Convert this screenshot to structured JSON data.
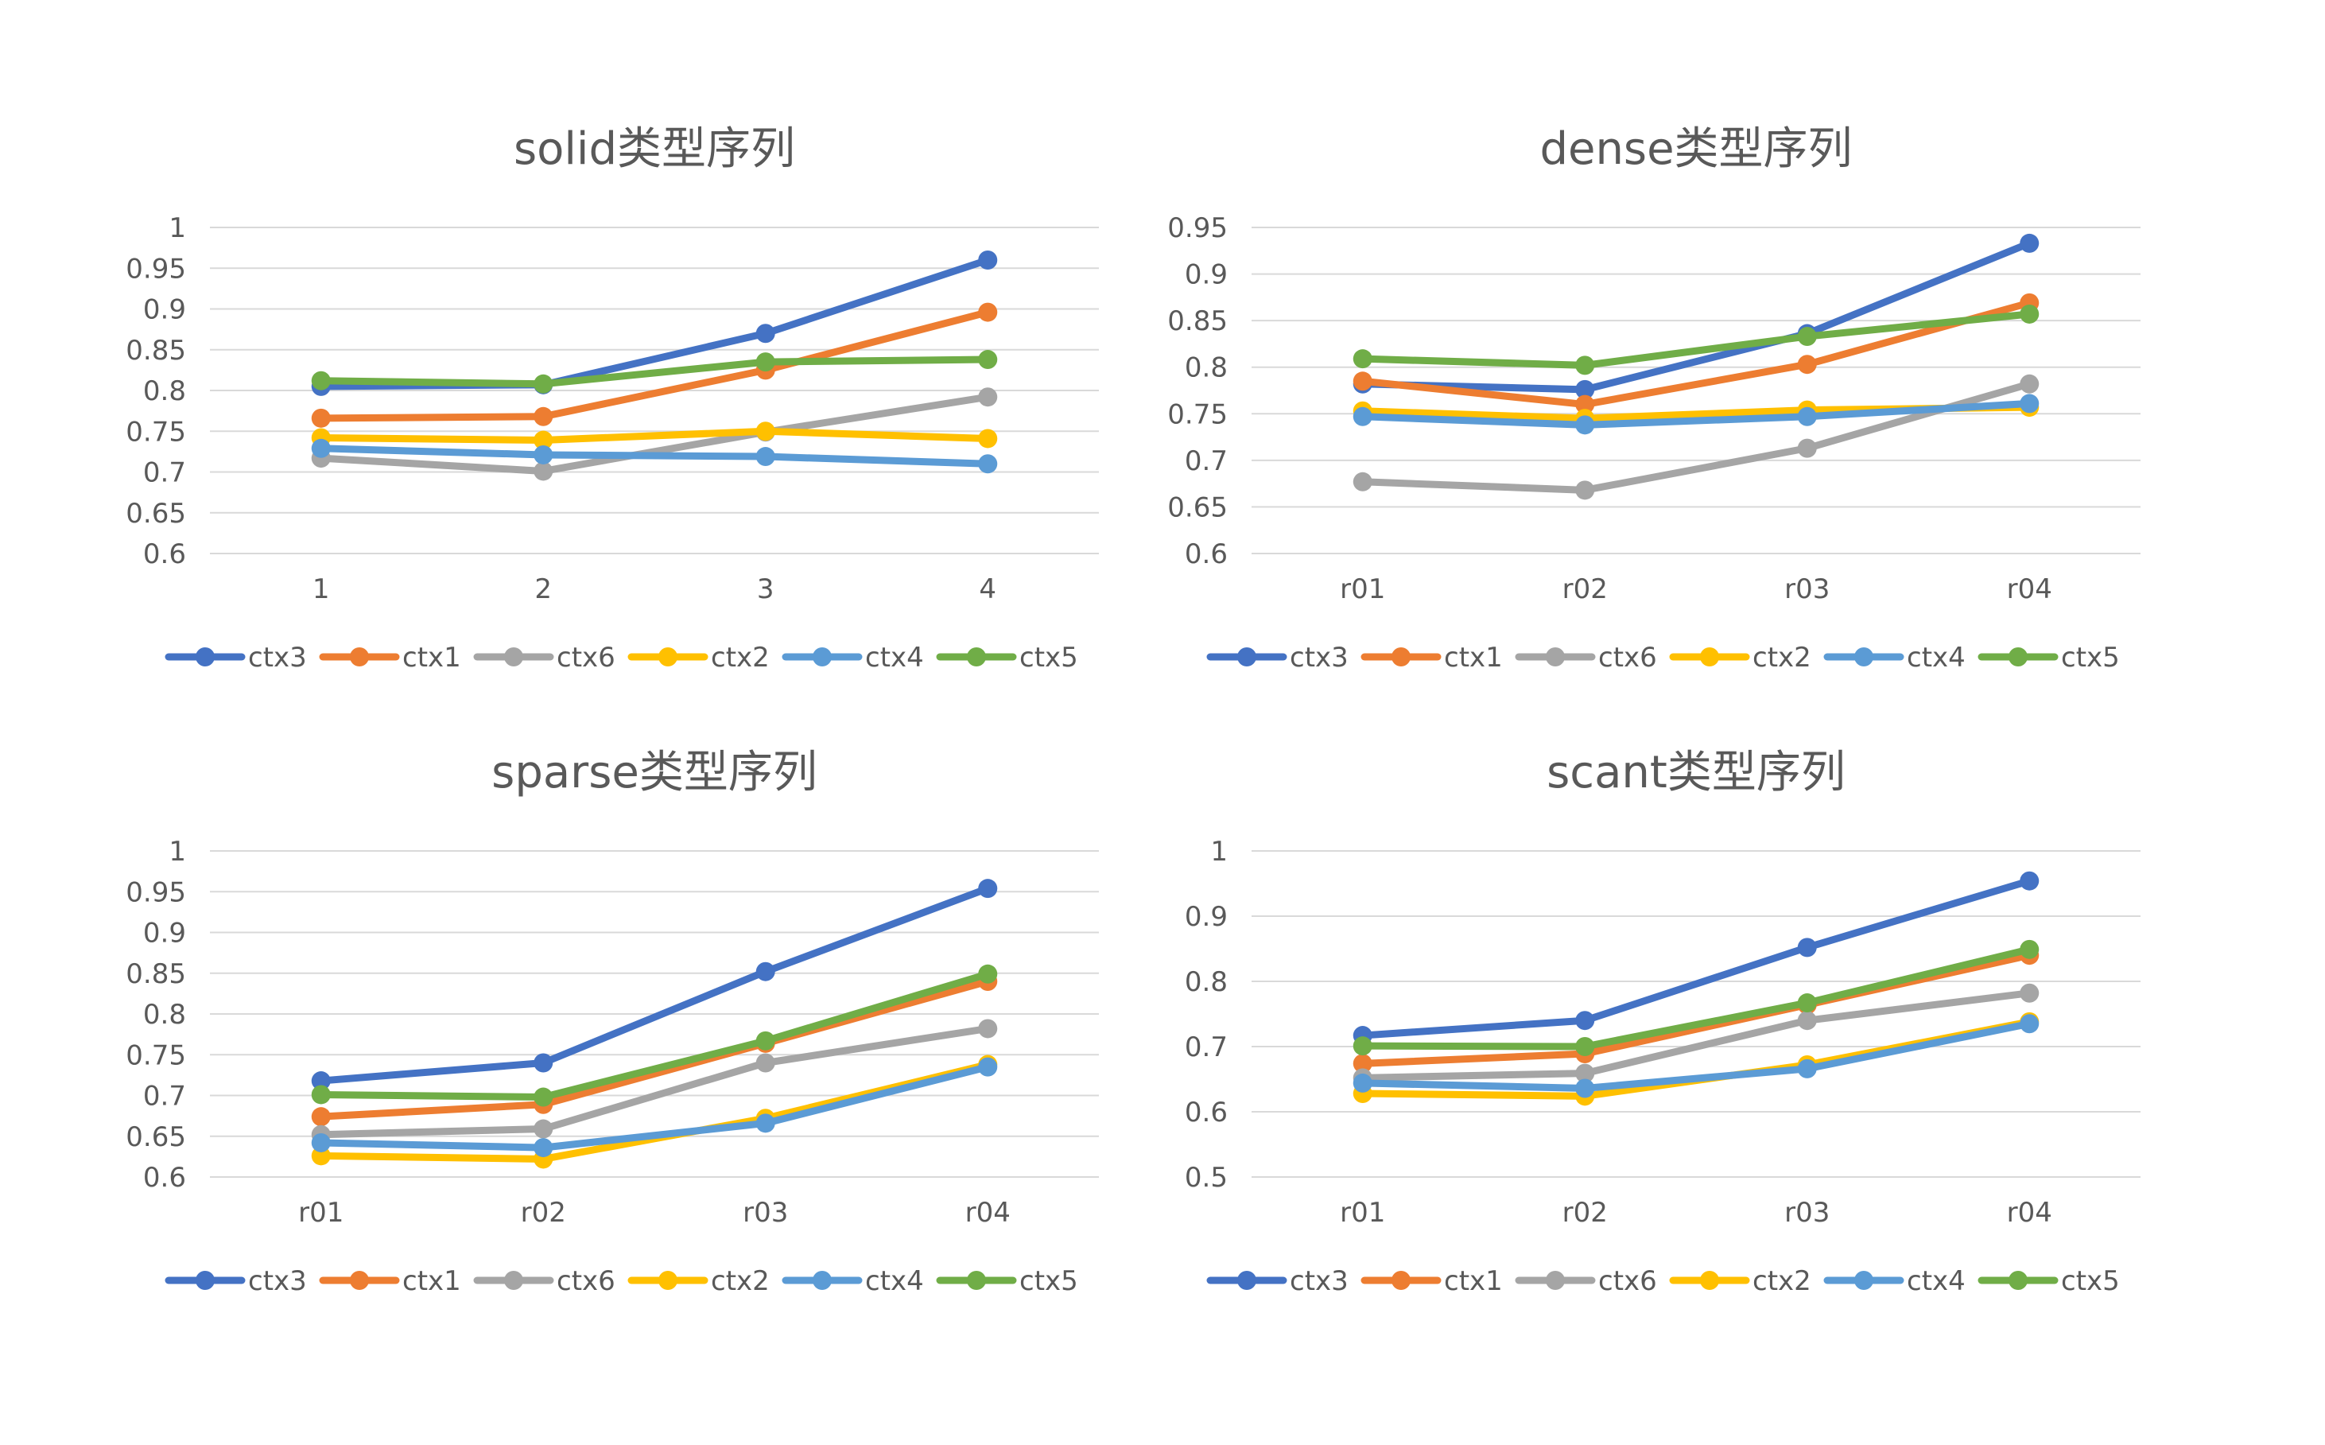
{
  "chart_data": [
    {
      "type": "line",
      "title": "solid类型序列",
      "categories": [
        "1",
        "2",
        "3",
        "4"
      ],
      "ylim": [
        0.6,
        1
      ],
      "yticks": [
        "0.6",
        "0.65",
        "0.7",
        "0.75",
        "0.8",
        "0.85",
        "0.9",
        "0.95",
        "1"
      ],
      "grid": true,
      "legend_position": "bottom",
      "series": [
        {
          "name": "ctx3",
          "color": "#4472C4",
          "values": [
            0.805,
            0.807,
            0.87,
            0.96
          ]
        },
        {
          "name": "ctx1",
          "color": "#ED7D31",
          "values": [
            0.766,
            0.768,
            0.825,
            0.896
          ]
        },
        {
          "name": "ctx6",
          "color": "#A5A5A5",
          "values": [
            0.717,
            0.701,
            0.749,
            0.792
          ]
        },
        {
          "name": "ctx2",
          "color": "#FFC000",
          "values": [
            0.742,
            0.739,
            0.75,
            0.741
          ]
        },
        {
          "name": "ctx4",
          "color": "#5B9BD5",
          "values": [
            0.729,
            0.721,
            0.719,
            0.71
          ]
        },
        {
          "name": "ctx5",
          "color": "#70AD47",
          "values": [
            0.812,
            0.808,
            0.835,
            0.838
          ]
        }
      ]
    },
    {
      "type": "line",
      "title": "dense类型序列",
      "categories": [
        "r01",
        "r02",
        "r03",
        "r04"
      ],
      "ylim": [
        0.6,
        0.95
      ],
      "yticks": [
        "0.6",
        "0.65",
        "0.7",
        "0.75",
        "0.8",
        "0.85",
        "0.9",
        "0.95"
      ],
      "grid": true,
      "legend_position": "bottom",
      "series": [
        {
          "name": "ctx3",
          "color": "#4472C4",
          "values": [
            0.782,
            0.776,
            0.836,
            0.933
          ]
        },
        {
          "name": "ctx1",
          "color": "#ED7D31",
          "values": [
            0.785,
            0.76,
            0.803,
            0.869
          ]
        },
        {
          "name": "ctx6",
          "color": "#A5A5A5",
          "values": [
            0.677,
            0.668,
            0.713,
            0.782
          ]
        },
        {
          "name": "ctx2",
          "color": "#FFC000",
          "values": [
            0.753,
            0.745,
            0.754,
            0.757
          ]
        },
        {
          "name": "ctx4",
          "color": "#5B9BD5",
          "values": [
            0.747,
            0.738,
            0.747,
            0.761
          ]
        },
        {
          "name": "ctx5",
          "color": "#70AD47",
          "values": [
            0.809,
            0.802,
            0.833,
            0.857
          ]
        }
      ]
    },
    {
      "type": "line",
      "title": "sparse类型序列",
      "categories": [
        "r01",
        "r02",
        "r03",
        "r04"
      ],
      "ylim": [
        0.6,
        1
      ],
      "yticks": [
        "0.6",
        "0.65",
        "0.7",
        "0.75",
        "0.8",
        "0.85",
        "0.9",
        "0.95",
        "1"
      ],
      "grid": true,
      "legend_position": "bottom",
      "series": [
        {
          "name": "ctx3",
          "color": "#4472C4",
          "values": [
            0.718,
            0.74,
            0.852,
            0.954
          ]
        },
        {
          "name": "ctx1",
          "color": "#ED7D31",
          "values": [
            0.674,
            0.689,
            0.764,
            0.84
          ]
        },
        {
          "name": "ctx6",
          "color": "#A5A5A5",
          "values": [
            0.652,
            0.659,
            0.74,
            0.782
          ]
        },
        {
          "name": "ctx2",
          "color": "#FFC000",
          "values": [
            0.626,
            0.622,
            0.672,
            0.738
          ]
        },
        {
          "name": "ctx4",
          "color": "#5B9BD5",
          "values": [
            0.642,
            0.636,
            0.666,
            0.735
          ]
        },
        {
          "name": "ctx5",
          "color": "#70AD47",
          "values": [
            0.701,
            0.698,
            0.767,
            0.849
          ]
        }
      ]
    },
    {
      "type": "line",
      "title": "scant类型序列",
      "categories": [
        "r01",
        "r02",
        "r03",
        "r04"
      ],
      "ylim": [
        0.5,
        1
      ],
      "yticks": [
        "0.5",
        "0.6",
        "0.7",
        "0.8",
        "0.9",
        "1"
      ],
      "grid": true,
      "legend_position": "bottom",
      "series": [
        {
          "name": "ctx3",
          "color": "#4472C4",
          "values": [
            0.717,
            0.74,
            0.852,
            0.954
          ]
        },
        {
          "name": "ctx1",
          "color": "#ED7D31",
          "values": [
            0.674,
            0.689,
            0.764,
            0.84
          ]
        },
        {
          "name": "ctx6",
          "color": "#A5A5A5",
          "values": [
            0.652,
            0.659,
            0.74,
            0.782
          ]
        },
        {
          "name": "ctx2",
          "color": "#FFC000",
          "values": [
            0.628,
            0.624,
            0.672,
            0.738
          ]
        },
        {
          "name": "ctx4",
          "color": "#5B9BD5",
          "values": [
            0.644,
            0.636,
            0.666,
            0.735
          ]
        },
        {
          "name": "ctx5",
          "color": "#70AD47",
          "values": [
            0.701,
            0.7,
            0.767,
            0.849
          ]
        }
      ]
    }
  ]
}
